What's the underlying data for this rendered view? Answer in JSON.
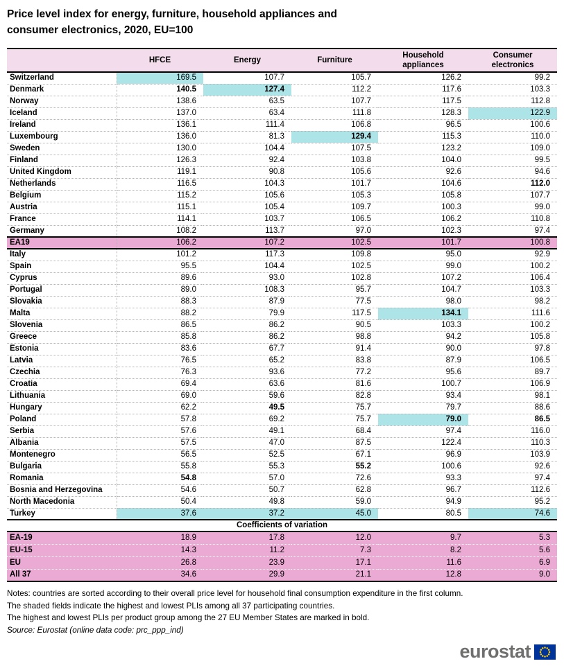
{
  "title": {
    "line1": "Price level index for energy, furniture, household appliances and",
    "line2": "consumer electronics, 2020, EU=100"
  },
  "table": {
    "column_headers": [
      "HFCE",
      "Energy",
      "Furniture",
      "Household appliances",
      "Consumer electronics"
    ],
    "rows": [
      {
        "name": "Switzerland",
        "type": "country",
        "values": [
          "169.5",
          "107.7",
          "105.7",
          "126.2",
          "99.2"
        ],
        "shaded": [
          0
        ],
        "bold": []
      },
      {
        "name": "Denmark",
        "type": "country",
        "values": [
          "140.5",
          "127.4",
          "112.2",
          "117.6",
          "103.3"
        ],
        "shaded": [
          1
        ],
        "bold": [
          0,
          1
        ]
      },
      {
        "name": "Norway",
        "type": "country",
        "values": [
          "138.6",
          "63.5",
          "107.7",
          "117.5",
          "112.8"
        ],
        "shaded": [],
        "bold": []
      },
      {
        "name": "Iceland",
        "type": "country",
        "values": [
          "137.0",
          "63.4",
          "111.8",
          "128.3",
          "122.9"
        ],
        "shaded": [
          4
        ],
        "bold": []
      },
      {
        "name": "Ireland",
        "type": "country",
        "values": [
          "136.1",
          "111.4",
          "106.8",
          "96.5",
          "100.6"
        ],
        "shaded": [],
        "bold": []
      },
      {
        "name": "Luxembourg",
        "type": "country",
        "values": [
          "136.0",
          "81.3",
          "129.4",
          "115.3",
          "110.0"
        ],
        "shaded": [
          2
        ],
        "bold": [
          2
        ]
      },
      {
        "name": "Sweden",
        "type": "country",
        "values": [
          "130.0",
          "104.4",
          "107.5",
          "123.2",
          "109.0"
        ],
        "shaded": [],
        "bold": []
      },
      {
        "name": "Finland",
        "type": "country",
        "values": [
          "126.3",
          "92.4",
          "103.8",
          "104.0",
          "99.5"
        ],
        "shaded": [],
        "bold": []
      },
      {
        "name": "United Kingdom",
        "type": "country",
        "values": [
          "119.1",
          "90.8",
          "105.6",
          "92.6",
          "94.6"
        ],
        "shaded": [],
        "bold": []
      },
      {
        "name": "Netherlands",
        "type": "country",
        "values": [
          "116.5",
          "104.3",
          "101.7",
          "104.6",
          "112.0"
        ],
        "shaded": [],
        "bold": [
          4
        ]
      },
      {
        "name": "Belgium",
        "type": "country",
        "values": [
          "115.2",
          "105.6",
          "105.3",
          "105.8",
          "107.7"
        ],
        "shaded": [],
        "bold": []
      },
      {
        "name": "Austria",
        "type": "country",
        "values": [
          "115.1",
          "105.4",
          "109.7",
          "100.3",
          "99.0"
        ],
        "shaded": [],
        "bold": []
      },
      {
        "name": "France",
        "type": "country",
        "values": [
          "114.1",
          "103.7",
          "106.5",
          "106.2",
          "110.8"
        ],
        "shaded": [],
        "bold": []
      },
      {
        "name": "Germany",
        "type": "country",
        "values": [
          "108.2",
          "113.7",
          "97.0",
          "102.3",
          "97.4"
        ],
        "shaded": [],
        "bold": []
      },
      {
        "name": "EA19",
        "type": "aggregate",
        "values": [
          "106.2",
          "107.2",
          "102.5",
          "101.7",
          "100.8"
        ],
        "shaded": [],
        "bold": []
      },
      {
        "name": "Italy",
        "type": "country",
        "values": [
          "101.2",
          "117.3",
          "109.8",
          "95.0",
          "92.9"
        ],
        "shaded": [],
        "bold": []
      },
      {
        "name": "Spain",
        "type": "country",
        "values": [
          "95.5",
          "104.4",
          "102.5",
          "99.0",
          "100.2"
        ],
        "shaded": [],
        "bold": []
      },
      {
        "name": "Cyprus",
        "type": "country",
        "values": [
          "89.6",
          "93.0",
          "102.8",
          "107.2",
          "106.4"
        ],
        "shaded": [],
        "bold": []
      },
      {
        "name": "Portugal",
        "type": "country",
        "values": [
          "89.0",
          "108.3",
          "95.7",
          "104.7",
          "103.3"
        ],
        "shaded": [],
        "bold": []
      },
      {
        "name": "Slovakia",
        "type": "country",
        "values": [
          "88.3",
          "87.9",
          "77.5",
          "98.0",
          "98.2"
        ],
        "shaded": [],
        "bold": []
      },
      {
        "name": "Malta",
        "type": "country",
        "values": [
          "88.2",
          "79.9",
          "117.5",
          "134.1",
          "111.6"
        ],
        "shaded": [
          3
        ],
        "bold": [
          3
        ]
      },
      {
        "name": "Slovenia",
        "type": "country",
        "values": [
          "86.5",
          "86.2",
          "90.5",
          "103.3",
          "100.2"
        ],
        "shaded": [],
        "bold": []
      },
      {
        "name": "Greece",
        "type": "country",
        "values": [
          "85.8",
          "86.2",
          "98.8",
          "94.2",
          "105.8"
        ],
        "shaded": [],
        "bold": []
      },
      {
        "name": "Estonia",
        "type": "country",
        "values": [
          "83.6",
          "67.7",
          "91.4",
          "90.0",
          "97.8"
        ],
        "shaded": [],
        "bold": []
      },
      {
        "name": "Latvia",
        "type": "country",
        "values": [
          "76.5",
          "65.2",
          "83.8",
          "87.9",
          "106.5"
        ],
        "shaded": [],
        "bold": []
      },
      {
        "name": "Czechia",
        "type": "country",
        "values": [
          "76.3",
          "93.6",
          "77.2",
          "95.6",
          "89.7"
        ],
        "shaded": [],
        "bold": []
      },
      {
        "name": "Croatia",
        "type": "country",
        "values": [
          "69.4",
          "63.6",
          "81.6",
          "100.7",
          "106.9"
        ],
        "shaded": [],
        "bold": []
      },
      {
        "name": "Lithuania",
        "type": "country",
        "values": [
          "69.0",
          "59.6",
          "82.8",
          "93.4",
          "98.1"
        ],
        "shaded": [],
        "bold": []
      },
      {
        "name": "Hungary",
        "type": "country",
        "values": [
          "62.2",
          "49.5",
          "75.7",
          "79.7",
          "88.6"
        ],
        "shaded": [],
        "bold": [
          1
        ]
      },
      {
        "name": "Poland",
        "type": "country",
        "values": [
          "57.8",
          "69.2",
          "75.7",
          "79.0",
          "86.5"
        ],
        "shaded": [
          3
        ],
        "bold": [
          3,
          4
        ]
      },
      {
        "name": "Serbia",
        "type": "country",
        "values": [
          "57.6",
          "49.1",
          "68.4",
          "97.4",
          "116.0"
        ],
        "shaded": [],
        "bold": []
      },
      {
        "name": "Albania",
        "type": "country",
        "values": [
          "57.5",
          "47.0",
          "87.5",
          "122.4",
          "110.3"
        ],
        "shaded": [],
        "bold": []
      },
      {
        "name": "Montenegro",
        "type": "country",
        "values": [
          "56.5",
          "52.5",
          "67.1",
          "96.9",
          "103.9"
        ],
        "shaded": [],
        "bold": []
      },
      {
        "name": "Bulgaria",
        "type": "country",
        "values": [
          "55.8",
          "55.3",
          "55.2",
          "100.6",
          "92.6"
        ],
        "shaded": [],
        "bold": [
          2
        ]
      },
      {
        "name": "Romania",
        "type": "country",
        "values": [
          "54.8",
          "57.0",
          "72.6",
          "93.3",
          "97.4"
        ],
        "shaded": [],
        "bold": [
          0
        ]
      },
      {
        "name": "Bosnia and Herzegovina",
        "type": "country",
        "values": [
          "54.6",
          "50.7",
          "62.8",
          "96.7",
          "112.6"
        ],
        "shaded": [],
        "bold": []
      },
      {
        "name": "North Macedonia",
        "type": "country",
        "values": [
          "50.4",
          "49.8",
          "59.0",
          "94.9",
          "95.2"
        ],
        "shaded": [],
        "bold": []
      },
      {
        "name": "Turkey",
        "type": "country",
        "values": [
          "37.6",
          "37.2",
          "45.0",
          "80.5",
          "74.6"
        ],
        "shaded": [
          0,
          1,
          2,
          4
        ],
        "bold": []
      }
    ],
    "cv_section_title": "Coefficients of variation",
    "cv_rows": [
      {
        "name": "EA-19",
        "values": [
          "18.9",
          "17.8",
          "12.0",
          "9.7",
          "5.3"
        ]
      },
      {
        "name": "EU-15",
        "values": [
          "14.3",
          "11.2",
          "7.3",
          "8.2",
          "5.6"
        ]
      },
      {
        "name": "EU",
        "values": [
          "26.8",
          "23.9",
          "17.1",
          "11.6",
          "6.9"
        ]
      },
      {
        "name": "All 37",
        "values": [
          "34.6",
          "29.9",
          "21.1",
          "12.8",
          "9.0"
        ]
      }
    ]
  },
  "notes": {
    "line1": "Notes: countries are sorted according to their overall price level for household final consumption expenditure in the first column.",
    "line2": "The shaded fields indicate the highest and lowest PLIs among all 37 participating countries.",
    "line3": "The highest and lowest PLIs per product group among the 27 EU Member States are marked in bold.",
    "source": "Source: Eurostat (online data code: prc_ppp_ind)"
  },
  "logo": {
    "text": "eurostat"
  },
  "colors": {
    "header_pink": "#f3dcec",
    "aggregate_pink": "#eaaad4",
    "highlight_cyan": "#ace4e8",
    "logo_gray": "#6f6f6e",
    "flag_blue": "#003399",
    "flag_star_yellow": "#ffcc00"
  }
}
